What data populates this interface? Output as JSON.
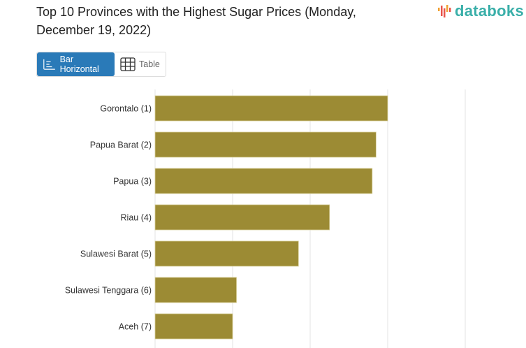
{
  "header": {
    "title": "Top 10 Provinces with the Highest Sugar Prices (Monday, December 19, 2022)",
    "logo": "databoks"
  },
  "view_toggle": {
    "bar_label": "Bar Horizontal",
    "table_label": "Table",
    "active": "Bar Horizontal"
  },
  "colors": {
    "bar": "#9c8b34",
    "active_button": "#2a7ab8",
    "logo": "#3aafa9"
  },
  "chart_data": {
    "type": "bar",
    "orientation": "horizontal",
    "title": "Top 10 Provinces with the Highest Sugar Prices (Monday, December 19, 2022)",
    "categories": [
      "Gorontalo (1)",
      "Papua Barat (2)",
      "Papua (3)",
      "Riau (4)",
      "Sulawesi Barat (5)",
      "Sulawesi Tenggara (6)",
      "Aceh (7)"
    ],
    "values": [
      17000,
      16850,
      16800,
      16250,
      15850,
      15050,
      15000
    ],
    "xlim": [
      14000,
      18000
    ],
    "grid": true,
    "xlabel": "",
    "ylabel": ""
  }
}
